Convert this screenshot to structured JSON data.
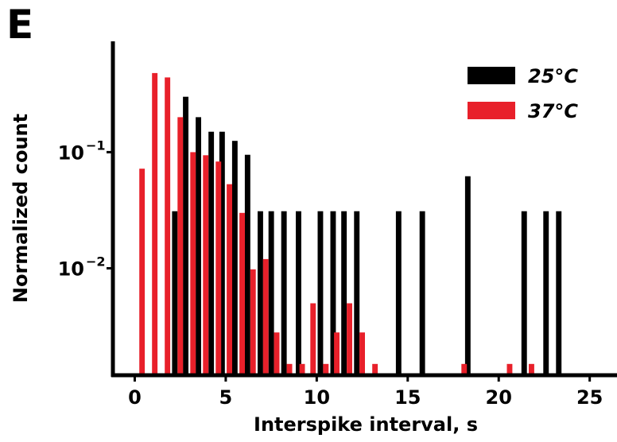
{
  "panel_label": "E",
  "chart_data": {
    "type": "bar",
    "xlabel": "Interspike interval, s",
    "ylabel": "Normalized count",
    "xlim": [
      -1.2,
      26.5
    ],
    "ylim": [
      0.0012,
      0.9
    ],
    "y_scale": "log",
    "xticks": [
      0,
      5,
      10,
      15,
      20,
      25
    ],
    "yticks": [
      {
        "value": 0.1,
        "base": "10",
        "exp": "−1"
      },
      {
        "value": 0.01,
        "base": "10",
        "exp": "−2"
      }
    ],
    "grid": false,
    "legend_position": "top-right",
    "bar_width": 0.3,
    "series": [
      {
        "name": "25°C",
        "color": "#000000",
        "points": [
          {
            "x": 2.2,
            "y": 0.031
          },
          {
            "x": 2.8,
            "y": 0.3
          },
          {
            "x": 3.5,
            "y": 0.2
          },
          {
            "x": 4.2,
            "y": 0.15
          },
          {
            "x": 4.8,
            "y": 0.15
          },
          {
            "x": 5.5,
            "y": 0.125
          },
          {
            "x": 6.2,
            "y": 0.095
          },
          {
            "x": 6.9,
            "y": 0.031
          },
          {
            "x": 7.5,
            "y": 0.031
          },
          {
            "x": 8.2,
            "y": 0.031
          },
          {
            "x": 9.0,
            "y": 0.031
          },
          {
            "x": 10.2,
            "y": 0.031
          },
          {
            "x": 10.9,
            "y": 0.031
          },
          {
            "x": 11.5,
            "y": 0.031
          },
          {
            "x": 12.2,
            "y": 0.031
          },
          {
            "x": 14.5,
            "y": 0.031
          },
          {
            "x": 15.8,
            "y": 0.031
          },
          {
            "x": 18.3,
            "y": 0.062
          },
          {
            "x": 21.4,
            "y": 0.031
          },
          {
            "x": 22.6,
            "y": 0.031
          },
          {
            "x": 23.3,
            "y": 0.031
          }
        ]
      },
      {
        "name": "37°C",
        "color": "#e8202a",
        "points": [
          {
            "x": 0.4,
            "y": 0.072
          },
          {
            "x": 1.1,
            "y": 0.48
          },
          {
            "x": 1.8,
            "y": 0.44
          },
          {
            "x": 2.5,
            "y": 0.2
          },
          {
            "x": 3.2,
            "y": 0.1
          },
          {
            "x": 3.9,
            "y": 0.094
          },
          {
            "x": 4.6,
            "y": 0.083
          },
          {
            "x": 5.2,
            "y": 0.053
          },
          {
            "x": 5.9,
            "y": 0.03
          },
          {
            "x": 6.5,
            "y": 0.0098
          },
          {
            "x": 7.2,
            "y": 0.012
          },
          {
            "x": 7.8,
            "y": 0.0028
          },
          {
            "x": 8.5,
            "y": 0.0015
          },
          {
            "x": 9.2,
            "y": 0.0015
          },
          {
            "x": 9.8,
            "y": 0.005
          },
          {
            "x": 10.5,
            "y": 0.0015
          },
          {
            "x": 11.1,
            "y": 0.0028
          },
          {
            "x": 11.8,
            "y": 0.005
          },
          {
            "x": 12.5,
            "y": 0.0028
          },
          {
            "x": 13.2,
            "y": 0.0015
          },
          {
            "x": 18.1,
            "y": 0.0015
          },
          {
            "x": 20.6,
            "y": 0.0015
          },
          {
            "x": 21.8,
            "y": 0.0015
          }
        ]
      }
    ]
  }
}
